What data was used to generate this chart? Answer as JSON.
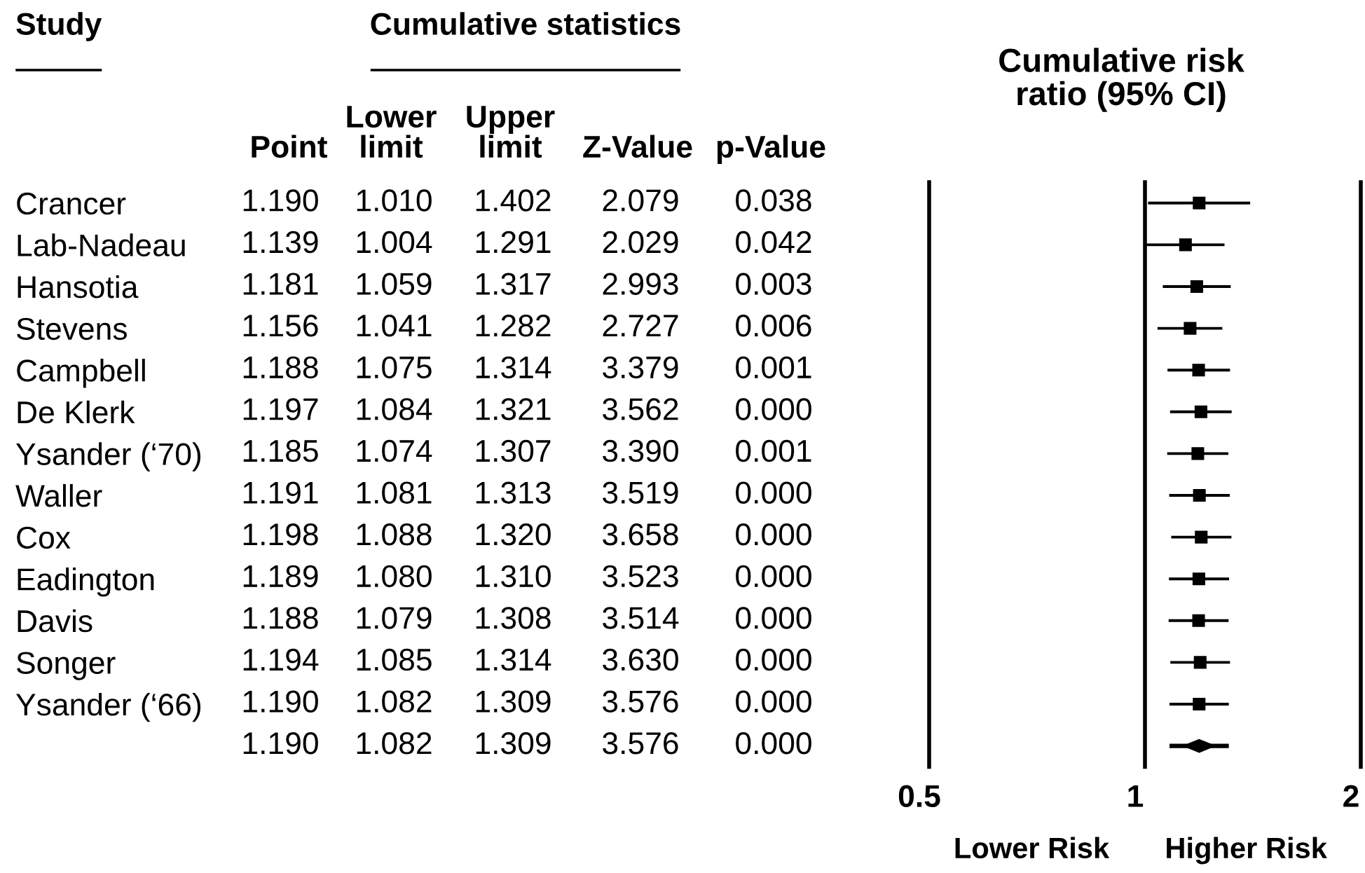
{
  "chart_data": [
    {
      "type": "other",
      "title": "Cumulative statistics",
      "ylabel": "Study",
      "categories": [
        "Crancer",
        "Lab-Nadeau",
        "Hansotia",
        "Stevens",
        "Campbell",
        "De Klerk",
        "Ysander (‘70)",
        "Waller",
        "Cox",
        "Eadington",
        "Davis",
        "Songer",
        "Ysander (‘66)"
      ],
      "series": [
        {
          "name": "Point",
          "values": [
            1.19,
            1.139,
            1.181,
            1.156,
            1.188,
            1.197,
            1.185,
            1.191,
            1.198,
            1.189,
            1.188,
            1.194,
            1.19
          ],
          "value_labels": [
            "1.190",
            "1.139",
            "1.181",
            "1.156",
            "1.188",
            "1.197",
            "1.185",
            "1.191",
            "1.198",
            "1.189",
            "1.188",
            "1.194",
            "1.190"
          ]
        },
        {
          "name": "Lower limit",
          "values": [
            1.01,
            1.004,
            1.059,
            1.041,
            1.075,
            1.084,
            1.074,
            1.081,
            1.088,
            1.08,
            1.079,
            1.085,
            1.082
          ],
          "value_labels": [
            "1.010",
            "1.004",
            "1.059",
            "1.041",
            "1.075",
            "1.084",
            "1.074",
            "1.081",
            "1.088",
            "1.080",
            "1.079",
            "1.085",
            "1.082"
          ]
        },
        {
          "name": "Upper limit",
          "values": [
            1.402,
            1.291,
            1.317,
            1.282,
            1.314,
            1.321,
            1.307,
            1.313,
            1.32,
            1.31,
            1.308,
            1.314,
            1.309
          ],
          "value_labels": [
            "1.402",
            "1.291",
            "1.317",
            "1.282",
            "1.314",
            "1.321",
            "1.307",
            "1.313",
            "1.320",
            "1.310",
            "1.308",
            "1.314",
            "1.309"
          ]
        },
        {
          "name": "Z-Value",
          "values": [
            2.079,
            2.029,
            2.993,
            2.727,
            3.379,
            3.562,
            3.39,
            3.519,
            3.658,
            3.523,
            3.514,
            3.63,
            3.576
          ],
          "value_labels": [
            "2.079",
            "2.029",
            "2.993",
            "2.727",
            "3.379",
            "3.562",
            "3.390",
            "3.519",
            "3.658",
            "3.523",
            "3.514",
            "3.630",
            "3.576"
          ]
        },
        {
          "name": "p-Value",
          "values": [
            0.038,
            0.042,
            0.003,
            0.006,
            0.001,
            0.0,
            0.001,
            0.0,
            0.0,
            0.0,
            0.0,
            0.0,
            0.0
          ],
          "value_labels": [
            "0.038",
            "0.042",
            "0.003",
            "0.006",
            "0.001",
            "0.000",
            "0.001",
            "0.000",
            "0.000",
            "0.000",
            "0.000",
            "0.000",
            "0.000"
          ]
        }
      ],
      "annotations": [
        "1.190",
        "1.082",
        "1.309",
        "3.576",
        "0.000"
      ]
    },
    {
      "type": "scatter",
      "title": "Cumulative risk ratio (95% CI)",
      "orientation": "horizontal",
      "categories": [
        null,
        null,
        null,
        null,
        null,
        null,
        null,
        null,
        null,
        null,
        null,
        null,
        null,
        null
      ],
      "series": [
        {
          "color": "#000000",
          "marker": "square",
          "values": [
            1.19,
            1.139,
            1.181,
            1.156,
            1.188,
            1.197,
            1.185,
            1.191,
            1.198,
            1.189,
            1.188,
            1.194,
            1.19,
            null
          ],
          "errors": [
            [
              1.01,
              1.402
            ],
            [
              1.004,
              1.291
            ],
            [
              1.059,
              1.317
            ],
            [
              1.041,
              1.282
            ],
            [
              1.075,
              1.314
            ],
            [
              1.084,
              1.321
            ],
            [
              1.074,
              1.307
            ],
            [
              1.081,
              1.313
            ],
            [
              1.088,
              1.32
            ],
            [
              1.08,
              1.31
            ],
            [
              1.079,
              1.308
            ],
            [
              1.085,
              1.314
            ],
            [
              1.082,
              1.309
            ],
            null
          ]
        },
        {
          "color": "#000000",
          "marker": "diamond",
          "values": [
            null,
            null,
            null,
            null,
            null,
            null,
            null,
            null,
            null,
            null,
            null,
            null,
            null,
            1.19
          ],
          "errors": [
            null,
            null,
            null,
            null,
            null,
            null,
            null,
            null,
            null,
            null,
            null,
            null,
            null,
            [
              1.082,
              1.309
            ]
          ]
        }
      ],
      "xlim": [
        0.5,
        2
      ],
      "xticks": [
        0.5,
        1,
        2
      ],
      "log": "x",
      "grid": "x",
      "annotations": [
        "Lower Risk",
        "Higher Risk"
      ]
    }
  ]
}
